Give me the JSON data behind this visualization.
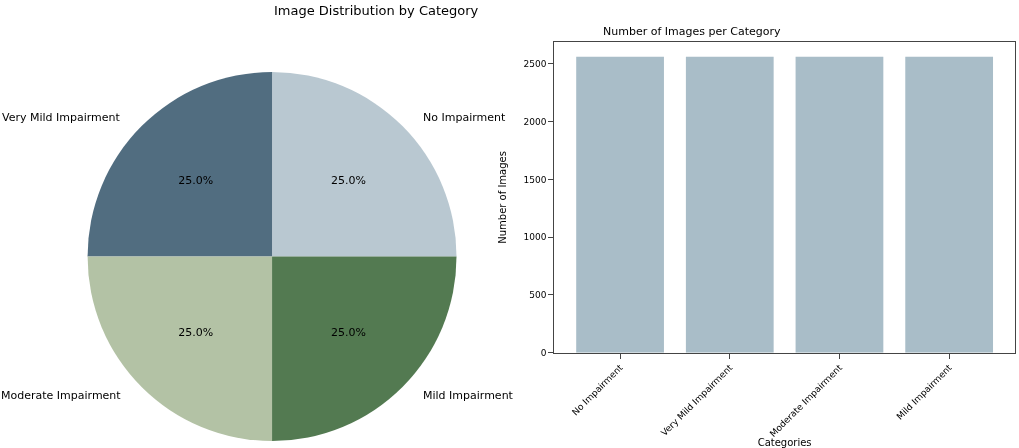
{
  "chart_data": [
    {
      "type": "pie",
      "title": "Image Distribution by Category",
      "categories": [
        "No Impairment",
        "Very Mild Impairment",
        "Moderate Impairment",
        "Mild Impairment"
      ],
      "values": [
        25,
        25,
        25,
        25
      ],
      "colors": [
        "#b9c8d1",
        "#516d80",
        "#b3c2a5",
        "#537a51"
      ],
      "value_labels": [
        "25.0%",
        "25.0%",
        "25.0%",
        "25.0%"
      ]
    },
    {
      "type": "bar",
      "title": "Number of Images per Category",
      "xlabel": "Categories",
      "ylabel": "Number of Images",
      "categories": [
        "No Impairment",
        "Very Mild Impairment",
        "Moderate Impairment",
        "Mild Impairment"
      ],
      "values": [
        2560,
        2560,
        2560,
        2560
      ],
      "color": "#a9bdc8",
      "ylim": [
        0,
        2688
      ],
      "yticks": [
        0,
        500,
        1000,
        1500,
        2000,
        2500
      ]
    }
  ]
}
